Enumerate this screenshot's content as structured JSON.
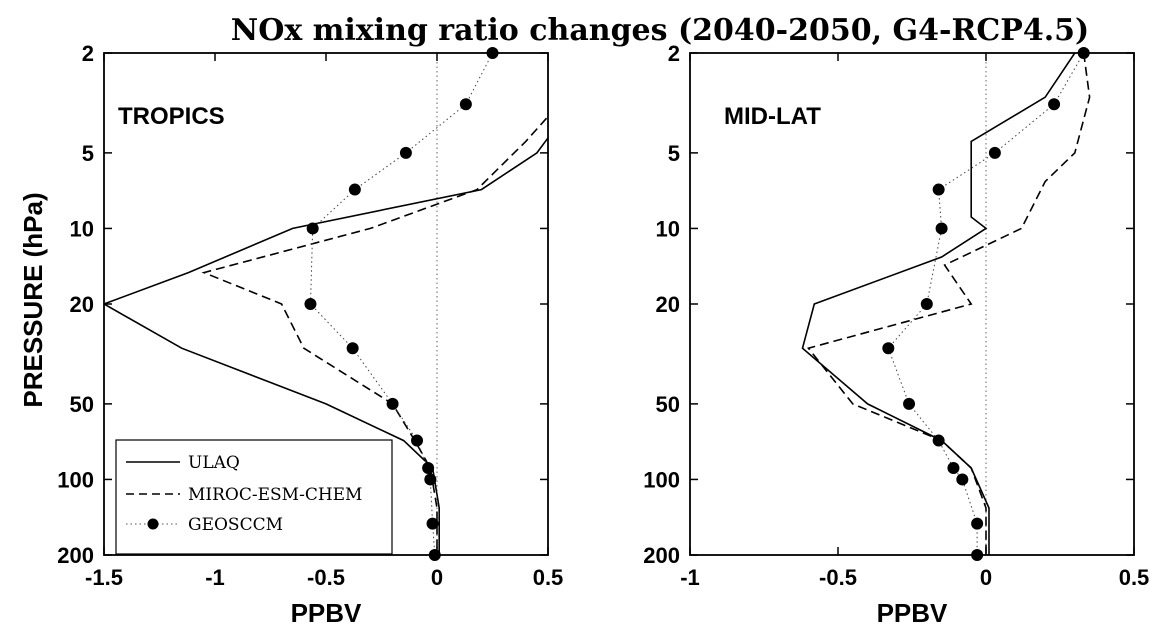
{
  "chart_data": {
    "title": "NOx mixing ratio changes (2040-2050, G4-RCP4.5)",
    "type": "line",
    "y_scale": "log",
    "y_reversed": true,
    "legend": {
      "placement": "bottom-left of left panel",
      "entries": [
        {
          "name": "ULAQ",
          "style": "solid"
        },
        {
          "name": "MIROC-ESM-CHEM",
          "style": "dashed"
        },
        {
          "name": "GEOSCCM",
          "style": "dotted with filled circles"
        }
      ]
    },
    "panels": [
      {
        "region_label": "TROPICS",
        "xlabel": "PPBV",
        "ylabel": "PRESSURE (hPa)",
        "xlim": [
          -1.5,
          0.5
        ],
        "ylim": [
          2,
          200
        ],
        "xticks": [
          "-1.5",
          "-1",
          "-0.5",
          "0",
          "0.5"
        ],
        "xtick_values": [
          -1.5,
          -1,
          -0.5,
          0,
          0.5
        ],
        "yticks": [
          "2",
          "5",
          "10",
          "20",
          "50",
          "100",
          "200"
        ],
        "ytick_values": [
          2,
          5,
          10,
          20,
          50,
          100,
          200
        ],
        "series": [
          {
            "name": "ULAQ",
            "style": "solid",
            "points": [
              [
                0.55,
                2
              ],
              [
                0.55,
                3.8
              ],
              [
                0.45,
                5
              ],
              [
                0.2,
                7
              ],
              [
                -0.65,
                10
              ],
              [
                -1.12,
                15
              ],
              [
                -1.5,
                20
              ],
              [
                -1.15,
                30
              ],
              [
                -0.5,
                50
              ],
              [
                -0.15,
                70
              ],
              [
                -0.02,
                90
              ],
              [
                0.01,
                130
              ],
              [
                0.01,
                200
              ]
            ]
          },
          {
            "name": "MIROC-ESM-CHEM",
            "style": "dashed",
            "points": [
              [
                0.55,
                2
              ],
              [
                0.55,
                3.2
              ],
              [
                0.4,
                4.5
              ],
              [
                0.18,
                7
              ],
              [
                -0.3,
                10
              ],
              [
                -1.05,
                15
              ],
              [
                -0.7,
                20
              ],
              [
                -0.6,
                30
              ],
              [
                -0.2,
                50
              ],
              [
                -0.1,
                70
              ],
              [
                -0.03,
                90
              ],
              [
                0.0,
                130
              ],
              [
                0.0,
                200
              ]
            ]
          },
          {
            "name": "GEOSCCM",
            "style": "dotted-marker",
            "points": [
              [
                0.25,
                2
              ],
              [
                0.13,
                3.2
              ],
              [
                -0.14,
                5
              ],
              [
                -0.37,
                7
              ],
              [
                -0.56,
                10
              ],
              [
                -0.57,
                20
              ],
              [
                -0.38,
                30
              ],
              [
                -0.2,
                50
              ],
              [
                -0.09,
                70
              ],
              [
                -0.04,
                90
              ],
              [
                -0.03,
                100
              ],
              [
                -0.02,
                150
              ],
              [
                -0.01,
                200
              ]
            ]
          }
        ]
      },
      {
        "region_label": "MID-LAT",
        "xlabel": "PPBV",
        "ylabel": "",
        "xlim": [
          -1,
          0.5
        ],
        "ylim": [
          2,
          200
        ],
        "xticks": [
          "-1",
          "-0.5",
          "0",
          "0.5"
        ],
        "xtick_values": [
          -1,
          -0.5,
          0,
          0.5
        ],
        "yticks": [
          "2",
          "5",
          "10",
          "20",
          "50",
          "100",
          "200"
        ],
        "ytick_values": [
          2,
          5,
          10,
          20,
          50,
          100,
          200
        ],
        "series": [
          {
            "name": "ULAQ",
            "style": "solid",
            "points": [
              [
                0.3,
                2
              ],
              [
                0.2,
                3
              ],
              [
                -0.05,
                4.5
              ],
              [
                -0.05,
                7
              ],
              [
                -0.05,
                9
              ],
              [
                0.0,
                10
              ],
              [
                -0.15,
                13
              ],
              [
                -0.58,
                20
              ],
              [
                -0.62,
                30
              ],
              [
                -0.4,
                50
              ],
              [
                -0.15,
                70
              ],
              [
                -0.05,
                90
              ],
              [
                0.01,
                130
              ],
              [
                0.01,
                200
              ]
            ]
          },
          {
            "name": "MIROC-ESM-CHEM",
            "style": "dashed",
            "points": [
              [
                0.33,
                2
              ],
              [
                0.35,
                3
              ],
              [
                0.3,
                5
              ],
              [
                0.2,
                6.5
              ],
              [
                0.12,
                10
              ],
              [
                -0.14,
                14
              ],
              [
                -0.05,
                20
              ],
              [
                -0.6,
                30
              ],
              [
                -0.45,
                50
              ],
              [
                -0.15,
                70
              ],
              [
                -0.05,
                90
              ],
              [
                0.0,
                130
              ],
              [
                0.0,
                200
              ]
            ]
          },
          {
            "name": "GEOSCCM",
            "style": "dotted-marker",
            "points": [
              [
                0.33,
                2
              ],
              [
                0.23,
                3.2
              ],
              [
                0.03,
                5
              ],
              [
                -0.16,
                7
              ],
              [
                -0.15,
                10
              ],
              [
                -0.2,
                20
              ],
              [
                -0.33,
                30
              ],
              [
                -0.26,
                50
              ],
              [
                -0.16,
                70
              ],
              [
                -0.11,
                90
              ],
              [
                -0.08,
                100
              ],
              [
                -0.03,
                150
              ],
              [
                -0.03,
                200
              ]
            ]
          }
        ]
      }
    ]
  }
}
